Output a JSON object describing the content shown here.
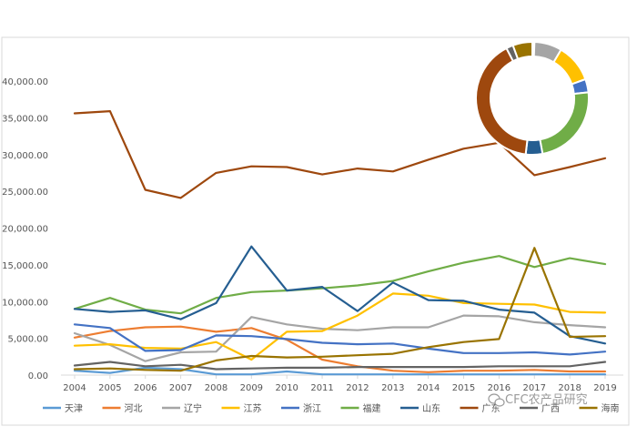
{
  "watermark": "CFC农产品研究",
  "chart_data": [
    {
      "type": "line",
      "x": [
        "2004",
        "2005",
        "2006",
        "2007",
        "2008",
        "2009",
        "2010",
        "2011",
        "2012",
        "2013",
        "2014",
        "2015",
        "2016",
        "2017",
        "2018",
        "2019"
      ],
      "y_ticks": [
        "0.00",
        "5,000.00",
        "10,000.00",
        "15,000.00",
        "20,000.00",
        "25,000.00",
        "30,000.00",
        "35,000.00",
        "40,000.00"
      ],
      "ylim": [
        0,
        40000
      ],
      "grid": false,
      "legend": "bottom",
      "series": [
        {
          "name": "天津",
          "color": "#5B9BD5",
          "values": [
            600,
            300,
            1000,
            800,
            100,
            100,
            500,
            100,
            100,
            100,
            100,
            100,
            100,
            100,
            100,
            100
          ]
        },
        {
          "name": "河北",
          "color": "#ED7D31",
          "values": [
            5100,
            6000,
            6500,
            6600,
            5900,
            6400,
            4800,
            2100,
            1200,
            600,
            400,
            600,
            600,
            700,
            500,
            500
          ]
        },
        {
          "name": "辽宁",
          "color": "#A5A5A5",
          "values": [
            5700,
            4100,
            1900,
            3100,
            3200,
            7900,
            6900,
            6300,
            6100,
            6500,
            6500,
            8100,
            8000,
            7200,
            6800,
            6500
          ]
        },
        {
          "name": "江苏",
          "color": "#FFC000",
          "values": [
            4000,
            4200,
            3700,
            3600,
            4500,
            2100,
            5900,
            6000,
            8100,
            11100,
            10800,
            9800,
            9700,
            9600,
            8600,
            8500
          ]
        },
        {
          "name": "浙江",
          "color": "#4472C4",
          "values": [
            6900,
            6400,
            3300,
            3400,
            5400,
            5300,
            4900,
            4400,
            4200,
            4300,
            3600,
            3000,
            3000,
            3100,
            2800,
            3200
          ]
        },
        {
          "name": "福建",
          "color": "#70AD47",
          "values": [
            9000,
            10500,
            8900,
            8400,
            10500,
            11300,
            11500,
            11800,
            12200,
            12800,
            14100,
            15300,
            16200,
            14700,
            15900,
            15100
          ]
        },
        {
          "name": "山东",
          "color": "#255E91",
          "values": [
            9000,
            8600,
            8800,
            7600,
            9800,
            17500,
            11500,
            12000,
            8700,
            12600,
            10200,
            10100,
            8900,
            8500,
            5300,
            4300
          ]
        },
        {
          "name": "广东",
          "color": "#9E480E",
          "values": [
            35600,
            35900,
            25200,
            24100,
            27500,
            28400,
            28300,
            27300,
            28100,
            27700,
            29300,
            30800,
            31600,
            27200,
            28300,
            29500
          ]
        },
        {
          "name": "广西",
          "color": "#636363",
          "values": [
            1300,
            1800,
            1200,
            1400,
            800,
            900,
            1000,
            1000,
            1100,
            1100,
            1100,
            1100,
            1200,
            1200,
            1200,
            1800
          ]
        },
        {
          "name": "海南",
          "color": "#997300",
          "values": [
            800,
            900,
            700,
            600,
            2000,
            2600,
            2400,
            2500,
            2700,
            2900,
            3800,
            4500,
            4900,
            17300,
            5200,
            5300
          ]
        }
      ]
    },
    {
      "type": "pie",
      "style": "donut",
      "slices": [
        {
          "name": "天津",
          "color": "#5B9BD5",
          "value": 0.3
        },
        {
          "name": "河北",
          "color": "#ED7D31",
          "value": 0.3
        },
        {
          "name": "辽宁",
          "color": "#A5A5A5",
          "value": 7.9
        },
        {
          "name": "江苏",
          "color": "#FFC000",
          "value": 11.0
        },
        {
          "name": "浙江",
          "color": "#4472C4",
          "value": 3.8
        },
        {
          "name": "福建",
          "color": "#70AD47",
          "value": 23.8
        },
        {
          "name": "山东",
          "color": "#255E91",
          "value": 4.8
        },
        {
          "name": "广东",
          "color": "#9E480E",
          "value": 40.5
        },
        {
          "name": "广西",
          "color": "#636363",
          "value": 2.0
        },
        {
          "name": "海南",
          "color": "#997300",
          "value": 5.6
        }
      ]
    }
  ]
}
